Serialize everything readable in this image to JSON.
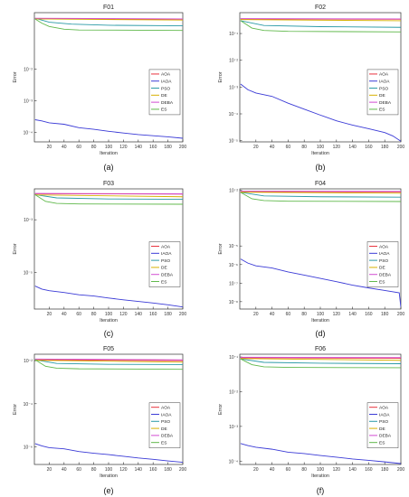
{
  "figure": {
    "legend_entries": [
      "AOA",
      "IAOA",
      "PSO",
      "DE",
      "DEBA",
      "ES"
    ],
    "series_colors": {
      "AOA": "#e8323c",
      "IAOA": "#3a3ad6",
      "PSO": "#2a9aa6",
      "DE": "#d6b000",
      "DEBA": "#d24cd2",
      "ES": "#5fb84a"
    }
  },
  "chart_data": [
    {
      "type": "line",
      "title": "F01",
      "caption": "(a)",
      "xlabel": "Iteration",
      "ylabel": "Error",
      "yscale": "log",
      "xlim": [
        0,
        200
      ],
      "ylim": [
        5e-05,
        0.6
      ],
      "xticks": [
        20,
        40,
        60,
        80,
        100,
        120,
        140,
        160,
        180,
        200
      ],
      "xtick_labels": [
        "20",
        "40",
        "60",
        "80",
        "100",
        "120",
        "140",
        "160",
        "180",
        "200"
      ],
      "yticks": [
        0.01,
        0.001,
        0.0001
      ],
      "ytick_labels": [
        "10⁻²",
        "10⁻³",
        "10⁻⁴"
      ],
      "legend_loc": "center-right",
      "series": [
        {
          "name": "AOA",
          "points": [
            [
              1,
              0.38
            ],
            [
              200,
              0.37
            ]
          ]
        },
        {
          "name": "IAOA",
          "points": [
            [
              1,
              0.00025
            ],
            [
              10,
              0.00023
            ],
            [
              20,
              0.0002
            ],
            [
              40,
              0.00018
            ],
            [
              60,
              0.00014
            ],
            [
              80,
              0.000125
            ],
            [
              100,
              0.000108
            ],
            [
              120,
              9.5e-05
            ],
            [
              140,
              8.5e-05
            ],
            [
              160,
              7.8e-05
            ],
            [
              180,
              7.2e-05
            ],
            [
              200,
              6.5e-05
            ]
          ]
        },
        {
          "name": "PSO",
          "points": [
            [
              1,
              0.4
            ],
            [
              20,
              0.3
            ],
            [
              50,
              0.26
            ],
            [
              100,
              0.24
            ],
            [
              200,
              0.23
            ]
          ]
        },
        {
          "name": "DE",
          "points": [
            [
              1,
              0.38
            ],
            [
              200,
              0.35
            ]
          ]
        },
        {
          "name": "DEBA",
          "points": [
            [
              1,
              0.4
            ],
            [
              200,
              0.38
            ]
          ]
        },
        {
          "name": "ES",
          "points": [
            [
              1,
              0.38
            ],
            [
              10,
              0.28
            ],
            [
              20,
              0.22
            ],
            [
              40,
              0.18
            ],
            [
              60,
              0.17
            ],
            [
              200,
              0.165
            ]
          ]
        }
      ]
    },
    {
      "type": "line",
      "title": "F02",
      "caption": "(b)",
      "xlabel": "Iteration",
      "ylabel": "Error",
      "yscale": "log",
      "xlim": [
        0,
        200
      ],
      "ylim": [
        9e-06,
        0.6
      ],
      "xticks": [
        20,
        40,
        60,
        80,
        100,
        120,
        140,
        160,
        180,
        200
      ],
      "xtick_labels": [
        "20",
        "40",
        "60",
        "80",
        "100",
        "120",
        "140",
        "160",
        "180",
        "200"
      ],
      "yticks": [
        0.1,
        0.01,
        0.001,
        0.0001,
        1e-05
      ],
      "ytick_labels": [
        "10⁻¹",
        "10⁻²",
        "10⁻³",
        "10⁻⁴",
        "10⁻⁵"
      ],
      "legend_loc": "center-right",
      "series": [
        {
          "name": "AOA",
          "points": [
            [
              1,
              0.35
            ],
            [
              200,
              0.34
            ]
          ]
        },
        {
          "name": "IAOA",
          "points": [
            [
              1,
              0.0013
            ],
            [
              10,
              0.0008
            ],
            [
              20,
              0.0006
            ],
            [
              40,
              0.00045
            ],
            [
              60,
              0.00025
            ],
            [
              80,
              0.00015
            ],
            [
              100,
              9e-05
            ],
            [
              120,
              5.5e-05
            ],
            [
              140,
              3.8e-05
            ],
            [
              160,
              2.8e-05
            ],
            [
              180,
              2e-05
            ],
            [
              190,
              1.5e-05
            ],
            [
              200,
              9.5e-06
            ]
          ]
        },
        {
          "name": "PSO",
          "points": [
            [
              1,
              0.3
            ],
            [
              30,
              0.2
            ],
            [
              100,
              0.18
            ],
            [
              200,
              0.17
            ]
          ]
        },
        {
          "name": "DE",
          "points": [
            [
              1,
              0.33
            ],
            [
              200,
              0.3
            ]
          ]
        },
        {
          "name": "DEBA",
          "points": [
            [
              1,
              0.36
            ],
            [
              200,
              0.35
            ]
          ]
        },
        {
          "name": "ES",
          "points": [
            [
              1,
              0.3
            ],
            [
              15,
              0.16
            ],
            [
              30,
              0.13
            ],
            [
              60,
              0.12
            ],
            [
              200,
              0.115
            ]
          ]
        }
      ]
    },
    {
      "type": "line",
      "title": "F03",
      "caption": "(c)",
      "xlabel": "Iteration",
      "ylabel": "Error",
      "yscale": "log",
      "xlim": [
        0,
        200
      ],
      "ylim": [
        4e-07,
        0.015
      ],
      "xticks": [
        20,
        40,
        60,
        80,
        100,
        120,
        140,
        160,
        180,
        200
      ],
      "xtick_labels": [
        "20",
        "40",
        "60",
        "80",
        "100",
        "120",
        "140",
        "160",
        "180",
        "200"
      ],
      "yticks": [
        0.001,
        1e-05
      ],
      "ytick_labels": [
        "10⁻³",
        "10⁻⁵"
      ],
      "legend_loc": "center-right",
      "series": [
        {
          "name": "AOA",
          "points": [
            [
              1,
              0.0098
            ],
            [
              200,
              0.0095
            ]
          ]
        },
        {
          "name": "IAOA",
          "points": [
            [
              1,
              3e-06
            ],
            [
              10,
              2.3e-06
            ],
            [
              20,
              2e-06
            ],
            [
              40,
              1.7e-06
            ],
            [
              60,
              1.4e-06
            ],
            [
              80,
              1.25e-06
            ],
            [
              100,
              1.05e-06
            ],
            [
              120,
              9e-07
            ],
            [
              140,
              7.8e-07
            ],
            [
              160,
              6.8e-07
            ],
            [
              180,
              5.8e-07
            ],
            [
              200,
              4.8e-07
            ]
          ]
        },
        {
          "name": "PSO",
          "points": [
            [
              1,
              0.009
            ],
            [
              30,
              0.0068
            ],
            [
              100,
              0.0062
            ],
            [
              200,
              0.006
            ]
          ]
        },
        {
          "name": "DE",
          "points": [
            [
              1,
              0.0088
            ],
            [
              200,
              0.0075
            ]
          ]
        },
        {
          "name": "DEBA",
          "points": [
            [
              1,
              0.01
            ],
            [
              200,
              0.0097
            ]
          ]
        },
        {
          "name": "ES",
          "points": [
            [
              1,
              0.009
            ],
            [
              15,
              0.005
            ],
            [
              30,
              0.0042
            ],
            [
              60,
              0.004
            ],
            [
              200,
              0.0039
            ]
          ]
        }
      ]
    },
    {
      "type": "line",
      "title": "F04",
      "caption": "(d)",
      "xlabel": "Iteration",
      "ylabel": "Error",
      "yscale": "log",
      "xlim": [
        0,
        200
      ],
      "ylim": [
        4e-09,
        0.012
      ],
      "xticks": [
        20,
        40,
        60,
        80,
        100,
        120,
        140,
        160,
        180,
        200
      ],
      "xtick_labels": [
        "20",
        "40",
        "60",
        "80",
        "100",
        "120",
        "140",
        "160",
        "180",
        "200"
      ],
      "yticks": [
        0.01,
        1e-05,
        1e-06,
        1e-07,
        1e-08
      ],
      "ytick_labels": [
        "10⁻²",
        "10⁻⁵",
        "10⁻⁶",
        "10⁻⁷",
        "10⁻⁸"
      ],
      "legend_loc": "center-right",
      "series": [
        {
          "name": "AOA",
          "points": [
            [
              1,
              0.0085
            ],
            [
              200,
              0.0082
            ]
          ]
        },
        {
          "name": "IAOA",
          "points": [
            [
              1,
              2e-06
            ],
            [
              10,
              1.2e-06
            ],
            [
              20,
              8.5e-07
            ],
            [
              40,
              6.5e-07
            ],
            [
              60,
              4e-07
            ],
            [
              80,
              2.7e-07
            ],
            [
              100,
              1.8e-07
            ],
            [
              120,
              1.2e-07
            ],
            [
              140,
              7.8e-08
            ],
            [
              160,
              5.5e-08
            ],
            [
              180,
              4e-08
            ],
            [
              198,
              3e-08
            ],
            [
              200,
              5e-09
            ]
          ]
        },
        {
          "name": "PSO",
          "points": [
            [
              1,
              0.0078
            ],
            [
              30,
              0.005
            ],
            [
              100,
              0.0045
            ],
            [
              200,
              0.0043
            ]
          ]
        },
        {
          "name": "DE",
          "points": [
            [
              1,
              0.008
            ],
            [
              200,
              0.007
            ]
          ]
        },
        {
          "name": "DEBA",
          "points": [
            [
              1,
              0.009
            ],
            [
              200,
              0.0088
            ]
          ]
        },
        {
          "name": "ES",
          "points": [
            [
              1,
              0.0078
            ],
            [
              15,
              0.0035
            ],
            [
              30,
              0.0028
            ],
            [
              60,
              0.0026
            ],
            [
              200,
              0.0025
            ]
          ]
        }
      ]
    },
    {
      "type": "line",
      "title": "F05",
      "caption": "(e)",
      "xlabel": "Iteration",
      "ylabel": "Error",
      "yscale": "log",
      "xlim": [
        0,
        200
      ],
      "ylim": [
        1.5e-07,
        0.02
      ],
      "xticks": [
        20,
        40,
        60,
        80,
        100,
        120,
        140,
        160,
        180,
        200
      ],
      "xtick_labels": [
        "20",
        "40",
        "60",
        "80",
        "100",
        "120",
        "140",
        "160",
        "180",
        "200"
      ],
      "yticks": [
        0.01,
        0.0001,
        1e-06
      ],
      "ytick_labels": [
        "10⁻²",
        "10⁻⁴",
        "10⁻⁶"
      ],
      "legend_loc": "center-right",
      "series": [
        {
          "name": "AOA",
          "points": [
            [
              1,
              0.011
            ],
            [
              200,
              0.01
            ]
          ]
        },
        {
          "name": "IAOA",
          "points": [
            [
              1,
              1.4e-06
            ],
            [
              10,
              1.1e-06
            ],
            [
              20,
              9e-07
            ],
            [
              40,
              8e-07
            ],
            [
              60,
              6e-07
            ],
            [
              80,
              5e-07
            ],
            [
              100,
              4.3e-07
            ],
            [
              120,
              3.6e-07
            ],
            [
              140,
              3e-07
            ],
            [
              160,
              2.6e-07
            ],
            [
              180,
              2.2e-07
            ],
            [
              200,
              1.9e-07
            ]
          ]
        },
        {
          "name": "PSO",
          "points": [
            [
              1,
              0.011
            ],
            [
              30,
              0.0075
            ],
            [
              100,
              0.0068
            ],
            [
              200,
              0.0066
            ]
          ]
        },
        {
          "name": "DE",
          "points": [
            [
              1,
              0.0105
            ],
            [
              200,
              0.0085
            ]
          ]
        },
        {
          "name": "DEBA",
          "points": [
            [
              1,
              0.012
            ],
            [
              200,
              0.011
            ]
          ]
        },
        {
          "name": "ES",
          "points": [
            [
              1,
              0.011
            ],
            [
              15,
              0.0055
            ],
            [
              30,
              0.0045
            ],
            [
              60,
              0.0042
            ],
            [
              200,
              0.004
            ]
          ]
        }
      ]
    },
    {
      "type": "line",
      "title": "F06",
      "caption": "(f)",
      "xlabel": "Iteration",
      "ylabel": "Error",
      "yscale": "log",
      "xlim": [
        0,
        200
      ],
      "ylim": [
        8e-05,
        0.12
      ],
      "xticks": [
        20,
        40,
        60,
        80,
        100,
        120,
        140,
        160,
        180,
        200
      ],
      "xtick_labels": [
        "20",
        "40",
        "60",
        "80",
        "100",
        "120",
        "140",
        "160",
        "180",
        "200"
      ],
      "yticks": [
        0.1,
        0.01,
        0.001,
        0.0001
      ],
      "ytick_labels": [
        "10⁻¹",
        "10⁻²",
        "10⁻³",
        "10⁻⁴"
      ],
      "legend_loc": "center-right",
      "series": [
        {
          "name": "AOA",
          "points": [
            [
              1,
              0.095
            ],
            [
              200,
              0.092
            ]
          ]
        },
        {
          "name": "IAOA",
          "points": [
            [
              1,
              0.00032
            ],
            [
              10,
              0.00028
            ],
            [
              20,
              0.00025
            ],
            [
              40,
              0.00022
            ],
            [
              60,
              0.00018
            ],
            [
              80,
              0.000165
            ],
            [
              100,
              0.000145
            ],
            [
              120,
              0.00013
            ],
            [
              140,
              0.000115
            ],
            [
              160,
              0.000105
            ],
            [
              180,
              9.5e-05
            ],
            [
              200,
              8.5e-05
            ]
          ]
        },
        {
          "name": "PSO",
          "points": [
            [
              1,
              0.088
            ],
            [
              30,
              0.07
            ],
            [
              100,
              0.066
            ],
            [
              200,
              0.064
            ]
          ]
        },
        {
          "name": "DE",
          "points": [
            [
              1,
              0.09
            ],
            [
              200,
              0.08
            ]
          ]
        },
        {
          "name": "DEBA",
          "points": [
            [
              1,
              0.098
            ],
            [
              200,
              0.096
            ]
          ]
        },
        {
          "name": "ES",
          "points": [
            [
              1,
              0.088
            ],
            [
              15,
              0.06
            ],
            [
              30,
              0.052
            ],
            [
              60,
              0.05
            ],
            [
              200,
              0.049
            ]
          ]
        }
      ]
    }
  ]
}
